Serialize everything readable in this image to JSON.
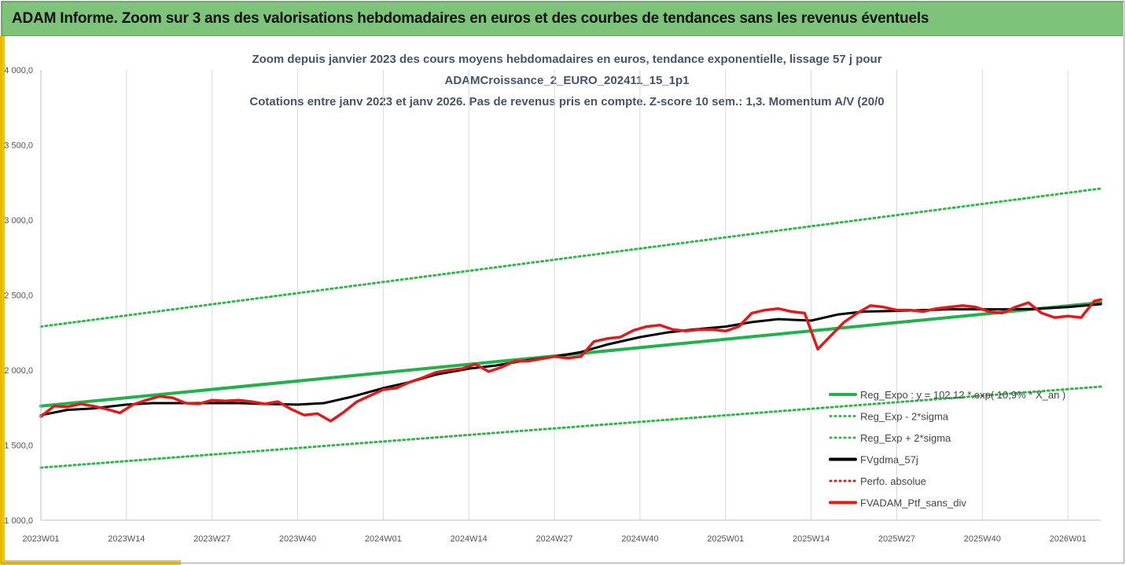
{
  "header": {
    "title": "ADAM Informe. Zoom sur 3 ans des valorisations hebdomadaires en euros et des courbes de tendances sans les revenus éventuels"
  },
  "colors": {
    "header_bg": "#7dc47a",
    "accent": "#f2c300",
    "reg_green": "#22b14c",
    "dotted_green": "#2eb84a",
    "black": "#000000",
    "red": "#e31a1c"
  },
  "chart_data": {
    "type": "line",
    "title_lines": [
      "Zoom depuis janvier 2023 des cours moyens hebdomadaires  en euros, tendance exponentielle, lissage 57 j pour",
      "ADAMCroissance_2_EURO_202411_15_1p1",
      "Cotations entre janv 2023 et janv 2026. Pas de revenus pris en compte. Z-score 10 sem.: 1,3. Momentum A/V (20/0"
    ],
    "y_ticks": [
      "1 000,0",
      "1 500,0",
      "2 000,0",
      "2 500,0",
      "3 000,0",
      "3 500,0",
      "4 000,0"
    ],
    "y_tick_values": [
      1000,
      1500,
      2000,
      2500,
      3000,
      3500,
      4000
    ],
    "ylim": [
      1000,
      4000
    ],
    "x_ticks": [
      "2023W01",
      "2023W14",
      "2023W27",
      "2023W40",
      "2024W01",
      "2024W14",
      "2024W27",
      "2024W40",
      "2025W01",
      "2025W14",
      "2025W27",
      "2025W40",
      "2026W01"
    ],
    "x_tick_weeks": [
      0,
      13,
      26,
      39,
      52,
      65,
      78,
      91,
      104,
      117,
      130,
      143,
      156
    ],
    "xlim": [
      0,
      161
    ],
    "grid": "vertical",
    "legend": [
      {
        "name": "Reg_Expo : y = 102,12 *.exp( 10,9% * X_an )",
        "style": "solid",
        "color": "#22b14c"
      },
      {
        "name": "Reg_Exp - 2*sigma",
        "style": "dotted",
        "color": "#2eb84a"
      },
      {
        "name": "Reg_Exp + 2*sigma",
        "style": "dotted",
        "color": "#2eb84a"
      },
      {
        "name": "FVgdma_57j",
        "style": "solid",
        "color": "#000000"
      },
      {
        "name": "Perfo. absolue",
        "style": "dotted",
        "color": "#e31a1c"
      },
      {
        "name": "FVADAM_Ptf_sans_div",
        "style": "solid",
        "color": "#e31a1c"
      }
    ],
    "legend_position": "bottom-right",
    "series": [
      {
        "name": "Reg_Expo",
        "type": "line",
        "weeks": [
          0,
          161
        ],
        "values": [
          1760,
          2450
        ]
      },
      {
        "name": "Reg_Exp - 2*sigma",
        "type": "dotted",
        "weeks": [
          0,
          161
        ],
        "values": [
          1350,
          1890
        ]
      },
      {
        "name": "Reg_Exp + 2*sigma",
        "type": "dotted",
        "weeks": [
          0,
          161
        ],
        "values": [
          2290,
          3210
        ]
      },
      {
        "name": "FVgdma_57j",
        "type": "line",
        "weeks": [
          0,
          4,
          8,
          13,
          17,
          21,
          26,
          30,
          34,
          39,
          43,
          47,
          52,
          56,
          60,
          65,
          69,
          73,
          78,
          82,
          86,
          91,
          95,
          99,
          104,
          108,
          112,
          117,
          121,
          125,
          130,
          134,
          138,
          143,
          147,
          151,
          156,
          161
        ],
        "values": [
          1700,
          1735,
          1745,
          1770,
          1780,
          1780,
          1780,
          1780,
          1775,
          1770,
          1780,
          1820,
          1880,
          1920,
          1970,
          2010,
          2030,
          2060,
          2090,
          2120,
          2170,
          2220,
          2250,
          2270,
          2290,
          2320,
          2340,
          2330,
          2370,
          2390,
          2395,
          2400,
          2405,
          2405,
          2405,
          2408,
          2420,
          2440
        ]
      },
      {
        "name": "FVADAM_Ptf_sans_div",
        "type": "line",
        "weeks": [
          0,
          2,
          4,
          6,
          8,
          10,
          12,
          14,
          16,
          18,
          20,
          22,
          24,
          26,
          28,
          30,
          32,
          34,
          36,
          38,
          40,
          42,
          44,
          46,
          48,
          50,
          52,
          54,
          56,
          58,
          60,
          62,
          64,
          66,
          68,
          70,
          72,
          74,
          76,
          78,
          80,
          82,
          84,
          86,
          88,
          90,
          92,
          94,
          96,
          98,
          100,
          102,
          104,
          106,
          108,
          110,
          112,
          114,
          116,
          118,
          120,
          122,
          124,
          126,
          128,
          130,
          132,
          134,
          136,
          138,
          140,
          142,
          144,
          146,
          148,
          150,
          152,
          154,
          156,
          158,
          160,
          161
        ],
        "values": [
          1690,
          1760,
          1755,
          1775,
          1760,
          1740,
          1715,
          1770,
          1800,
          1825,
          1815,
          1780,
          1775,
          1800,
          1795,
          1800,
          1790,
          1775,
          1790,
          1740,
          1700,
          1710,
          1660,
          1720,
          1790,
          1830,
          1870,
          1880,
          1920,
          1950,
          1985,
          2000,
          2010,
          2040,
          1990,
          2020,
          2060,
          2060,
          2075,
          2090,
          2080,
          2090,
          2190,
          2210,
          2220,
          2265,
          2290,
          2300,
          2270,
          2260,
          2270,
          2270,
          2260,
          2290,
          2380,
          2400,
          2410,
          2390,
          2380,
          2140,
          2230,
          2320,
          2380,
          2430,
          2420,
          2400,
          2400,
          2390,
          2410,
          2420,
          2430,
          2420,
          2390,
          2380,
          2420,
          2450,
          2380,
          2350,
          2360,
          2350,
          2460,
          2470
        ]
      }
    ]
  }
}
